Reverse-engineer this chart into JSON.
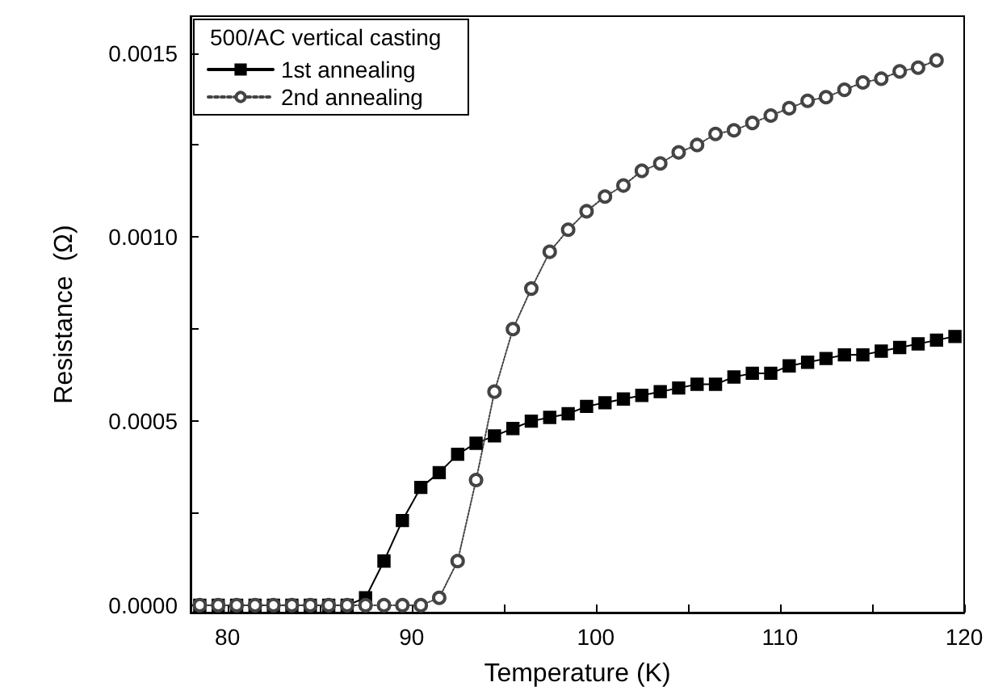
{
  "chart_data": {
    "type": "line",
    "xlabel": "Temperature (K)",
    "ylabel": "Resistance  (Ω)",
    "legend_title": "500/AC vertical casting",
    "legend": "top left",
    "grid": false,
    "xlim": [
      78,
      120
    ],
    "xticks": [
      80,
      {
        "value": 85,
        "label": null
      },
      90,
      {
        "value": 95,
        "label": null
      },
      100,
      {
        "value": 105,
        "label": null
      },
      110,
      {
        "value": 115,
        "label": null
      },
      120
    ],
    "ylim": [
      -2e-05,
      0.0016
    ],
    "yticks": [
      {
        "value": 0,
        "label": "0.0000"
      },
      {
        "value": 0.00025,
        "label": null
      },
      {
        "value": 0.0005,
        "label": "0.0005"
      },
      {
        "value": 0.00075,
        "label": null
      },
      {
        "value": 0.001,
        "label": "0.0010"
      },
      {
        "value": 0.00125,
        "label": null
      },
      {
        "value": 0.0015,
        "label": "0.0015"
      }
    ],
    "series": [
      {
        "name": "1st annealing",
        "color": "#000000",
        "marker": "square",
        "line_style": "solid",
        "x": [
          78.5,
          79.5,
          80.5,
          81.5,
          82.5,
          83.5,
          84.5,
          85.5,
          86.5,
          87.5,
          88.5,
          89.5,
          90.5,
          91.5,
          92.5,
          93.5,
          94.5,
          95.5,
          96.5,
          97.5,
          98.5,
          99.5,
          100.5,
          101.5,
          102.5,
          103.5,
          104.5,
          105.5,
          106.5,
          107.5,
          108.5,
          109.5,
          110.5,
          111.5,
          112.5,
          113.5,
          114.5,
          115.5,
          116.5,
          117.5,
          118.5,
          119.5
        ],
        "values": [
          0,
          0,
          0,
          0,
          0,
          0,
          0,
          0,
          0,
          2e-05,
          0.00012,
          0.00023,
          0.00032,
          0.00036,
          0.00041,
          0.00044,
          0.00046,
          0.00048,
          0.0005,
          0.00051,
          0.00052,
          0.00054,
          0.00055,
          0.00056,
          0.00057,
          0.00058,
          0.00059,
          0.0006,
          0.0006,
          0.00062,
          0.00063,
          0.00063,
          0.00065,
          0.00066,
          0.00067,
          0.00068,
          0.00068,
          0.00069,
          0.0007,
          0.00071,
          0.00072,
          0.00073
        ]
      },
      {
        "name": "2nd annealing",
        "color": "#444444",
        "marker": "circle",
        "line_style": "dotted",
        "x": [
          78.5,
          79.5,
          80.5,
          81.5,
          82.5,
          83.5,
          84.5,
          85.5,
          86.5,
          87.5,
          88.5,
          89.5,
          90.5,
          91.5,
          92.5,
          93.5,
          94.5,
          95.5,
          96.5,
          97.5,
          98.5,
          99.5,
          100.5,
          101.5,
          102.5,
          103.5,
          104.5,
          105.5,
          106.5,
          107.5,
          108.5,
          109.5,
          110.5,
          111.5,
          112.5,
          113.5,
          114.5,
          115.5,
          116.5,
          117.5,
          118.5
        ],
        "values": [
          0,
          0,
          0,
          0,
          0,
          0,
          0,
          0,
          0,
          0,
          0,
          0,
          0,
          2e-05,
          0.00012,
          0.00034,
          0.00058,
          0.00075,
          0.00086,
          0.00096,
          0.00102,
          0.00107,
          0.00111,
          0.00114,
          0.00118,
          0.0012,
          0.00123,
          0.00125,
          0.00128,
          0.00129,
          0.00131,
          0.00133,
          0.00135,
          0.00137,
          0.00138,
          0.0014,
          0.00142,
          0.00143,
          0.00145,
          0.00146,
          0.00148
        ]
      }
    ]
  }
}
